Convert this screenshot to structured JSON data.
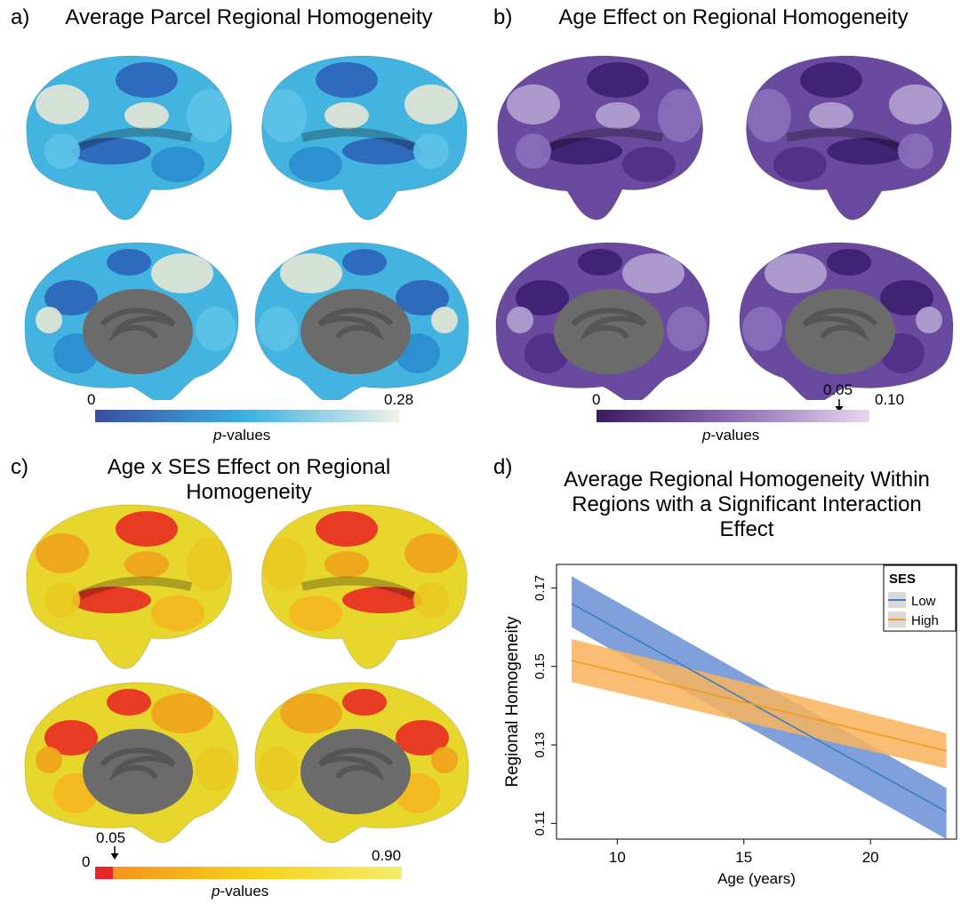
{
  "panels": {
    "a": {
      "letter": "a)",
      "title": "Average Parcel Regional Homogeneity",
      "colorbar": {
        "min": "0",
        "max": "0.28",
        "caption_italic": "p",
        "caption_rest": "-values",
        "colors": [
          "#3a4ea3",
          "#3ab3e3",
          "#f1f1e8"
        ]
      }
    },
    "b": {
      "letter": "b)",
      "title": "Age Effect on Regional Homogeneity",
      "colorbar": {
        "min": "0",
        "mark": "0.05",
        "max": "0.10",
        "caption_italic": "p",
        "caption_rest": "-values",
        "colors": [
          "#3a1a63",
          "#8d6db5",
          "#e8d8ee"
        ]
      }
    },
    "c": {
      "letter": "c)",
      "title_line1": "Age x SES Effect on Regional",
      "title_line2": "Homogeneity",
      "colorbar": {
        "min": "0",
        "mark": "0.05",
        "max": "0.90",
        "caption_italic": "p",
        "caption_rest": "-values",
        "colors": [
          "#e8262a",
          "#f7931e",
          "#f6d21a",
          "#f4ec6c"
        ]
      }
    },
    "d": {
      "letter": "d)",
      "title_line1": "Average Regional Homogeneity Within",
      "title_line2": "Regions with a Significant Interaction",
      "title_line3": "Effect"
    }
  },
  "brain_colors": {
    "a": [
      "#43b4e0",
      "#2d63b8",
      "#e6e4d6",
      "#5fc2e8",
      "#2a8ccf"
    ],
    "b": [
      "#6a4a9e",
      "#3c1f70",
      "#b4a2d0",
      "#8a6fbb",
      "#502f86"
    ],
    "c": [
      "#e7d62c",
      "#e82a22",
      "#f0a31c",
      "#e9c91f",
      "#f5b51f"
    ],
    "medial_wall": "#6b6b6b"
  },
  "chart_data": {
    "type": "line",
    "title": "Average Regional Homogeneity Within Regions with a Significant Interaction Effect",
    "xlabel": "Age (years)",
    "ylabel": "Regional Homogeneity",
    "xlim": [
      7.6,
      23.4
    ],
    "ylim": [
      0.106,
      0.176
    ],
    "xticks": [
      10,
      15,
      20
    ],
    "yticks": [
      0.11,
      0.13,
      0.15,
      0.17
    ],
    "legend": {
      "title": "SES",
      "position": "top-right"
    },
    "series": [
      {
        "name": "Low",
        "color": "#3a7ec4",
        "band_color": "#6a8fd6",
        "x": [
          8.2,
          23.0
        ],
        "y": [
          0.166,
          0.113
        ],
        "lower": [
          0.16,
          0.106
        ],
        "upper": [
          0.173,
          0.119
        ]
      },
      {
        "name": "High",
        "color": "#f39a1e",
        "band_color": "#f8b35a",
        "x": [
          8.2,
          23.0
        ],
        "y": [
          0.1515,
          0.1285
        ],
        "lower": [
          0.146,
          0.124
        ],
        "upper": [
          0.157,
          0.133
        ]
      }
    ]
  }
}
